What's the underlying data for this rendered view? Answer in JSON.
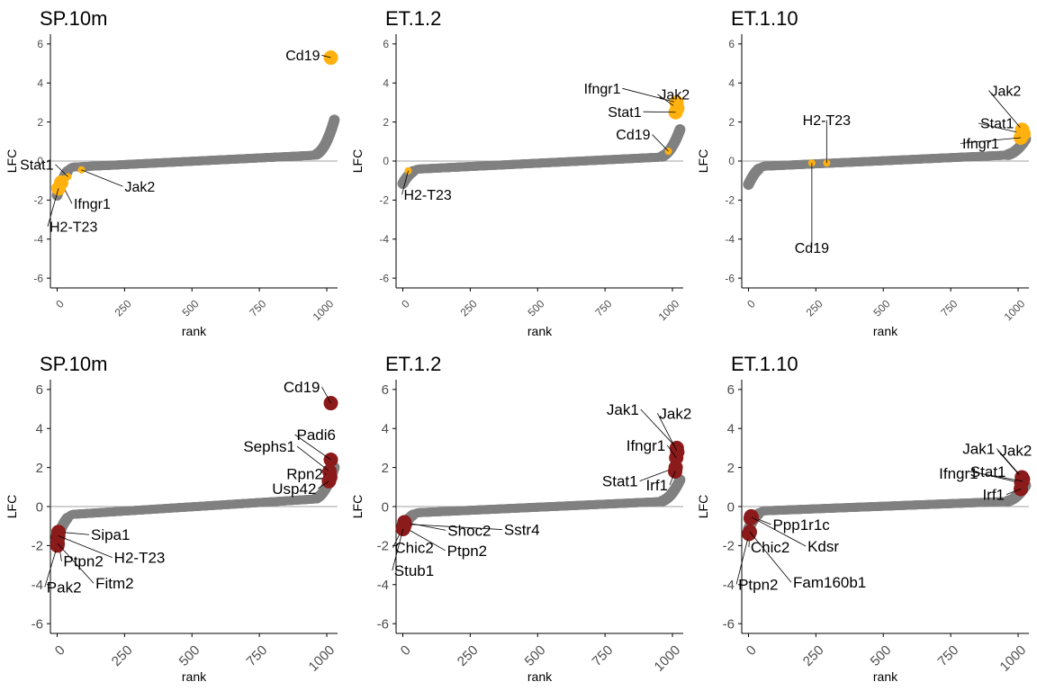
{
  "colors": {
    "background_points": "#808080",
    "highlight_top": "#FFB20F",
    "highlight_bottom": "#8B1A1A",
    "axis": "#000000",
    "zero_line": "#808080"
  },
  "chart_data": [
    {
      "type": "scatter",
      "title": "SP.10m",
      "xlabel": "rank",
      "ylabel": "LFC",
      "xlim": [
        -25,
        1040
      ],
      "ylim": [
        -6.5,
        6.5
      ],
      "xticks": [
        "0",
        "250",
        "500",
        "750",
        "1000"
      ],
      "yticks": [
        "-6",
        "-4",
        "-2",
        "0",
        "2",
        "4",
        "6"
      ],
      "zero_line": true,
      "highlight_color": "#FFB20F",
      "highlights": [
        {
          "label": "Cd19",
          "x": 1015,
          "y": 5.3
        },
        {
          "label": "Stat1",
          "x": 40,
          "y": -0.8
        },
        {
          "label": "Jak2",
          "x": 90,
          "y": -0.45
        },
        {
          "label": "Ifngr1",
          "x": 15,
          "y": -1.1
        },
        {
          "label": "H2-T23",
          "x": 5,
          "y": -1.4
        }
      ]
    },
    {
      "type": "scatter",
      "title": "ET.1.2",
      "xlabel": "rank",
      "ylabel": "LFC",
      "xlim": [
        -25,
        1040
      ],
      "ylim": [
        -6.5,
        6.5
      ],
      "xticks": [
        "0",
        "250",
        "500",
        "750",
        "1000"
      ],
      "yticks": [
        "-6",
        "-4",
        "-2",
        "0",
        "2",
        "4",
        "6"
      ],
      "zero_line": true,
      "highlight_color": "#FFB20F",
      "highlights": [
        {
          "label": "Ifngr1",
          "x": 1015,
          "y": 3.0
        },
        {
          "label": "Jak2",
          "x": 1018,
          "y": 2.7
        },
        {
          "label": "Stat1",
          "x": 1012,
          "y": 2.5
        },
        {
          "label": "Cd19",
          "x": 985,
          "y": 0.5
        },
        {
          "label": "H2-T23",
          "x": 20,
          "y": -0.5
        }
      ]
    },
    {
      "type": "scatter",
      "title": "ET.1.10",
      "xlabel": "rank",
      "ylabel": "LFC",
      "xlim": [
        -25,
        1040
      ],
      "ylim": [
        -6.5,
        6.5
      ],
      "xticks": [
        "0",
        "250",
        "500",
        "750",
        "1000"
      ],
      "yticks": [
        "-6",
        "-4",
        "-2",
        "0",
        "2",
        "4",
        "6"
      ],
      "zero_line": true,
      "highlight_color": "#FFB20F",
      "highlights": [
        {
          "label": "Jak2",
          "x": 1015,
          "y": 1.6
        },
        {
          "label": "Stat1",
          "x": 1020,
          "y": 1.4
        },
        {
          "label": "Ifngr1",
          "x": 1010,
          "y": 1.2
        },
        {
          "label": "H2-T23",
          "x": 290,
          "y": -0.1
        },
        {
          "label": "Cd19",
          "x": 235,
          "y": -0.1
        }
      ]
    },
    {
      "type": "scatter",
      "title": "SP.10m",
      "xlabel": "rank",
      "ylabel": "LFC",
      "xlim": [
        -25,
        1040
      ],
      "ylim": [
        -6.5,
        6.5
      ],
      "xticks": [
        "0",
        "250",
        "500",
        "750",
        "1000"
      ],
      "yticks": [
        "-6",
        "-4",
        "-2",
        "0",
        "2",
        "4",
        "6"
      ],
      "zero_line": true,
      "highlight_color": "#8B1A1A",
      "highlights": [
        {
          "label": "Cd19",
          "x": 1015,
          "y": 5.3
        },
        {
          "label": "Sephs1",
          "x": 1010,
          "y": 1.8
        },
        {
          "label": "Padi6",
          "x": 1015,
          "y": 2.4
        },
        {
          "label": "Rpn2",
          "x": 1013,
          "y": 1.5
        },
        {
          "label": "Usp42",
          "x": 1008,
          "y": 1.3
        },
        {
          "label": "Sipa1",
          "x": 5,
          "y": -1.3
        },
        {
          "label": "Ptpn2",
          "x": 3,
          "y": -1.6
        },
        {
          "label": "H2-T23",
          "x": 4,
          "y": -1.5
        },
        {
          "label": "Pak2",
          "x": 1,
          "y": -2.0
        },
        {
          "label": "Fitm2",
          "x": 2,
          "y": -1.9
        }
      ]
    },
    {
      "type": "scatter",
      "title": "ET.1.2",
      "xlabel": "rank",
      "ylabel": "LFC",
      "xlim": [
        -25,
        1040
      ],
      "ylim": [
        -6.5,
        6.5
      ],
      "xticks": [
        "0",
        "250",
        "500",
        "750",
        "1000"
      ],
      "yticks": [
        "-6",
        "-4",
        "-2",
        "0",
        "2",
        "4",
        "6"
      ],
      "zero_line": true,
      "highlight_color": "#8B1A1A",
      "highlights": [
        {
          "label": "Jak1",
          "x": 1016,
          "y": 3.0
        },
        {
          "label": "Jak2",
          "x": 1018,
          "y": 2.8
        },
        {
          "label": "Ifngr1",
          "x": 1014,
          "y": 2.5
        },
        {
          "label": "Stat1",
          "x": 1012,
          "y": 2.0
        },
        {
          "label": "Irf1",
          "x": 1010,
          "y": 1.8
        },
        {
          "label": "Shoc2",
          "x": 6,
          "y": -0.8
        },
        {
          "label": "Sstr4",
          "x": 8,
          "y": -0.9
        },
        {
          "label": "Chic2",
          "x": 3,
          "y": -1.0
        },
        {
          "label": "Ptpn2",
          "x": 4,
          "y": -1.05
        },
        {
          "label": "Stub1",
          "x": 1,
          "y": -1.15
        }
      ]
    },
    {
      "type": "scatter",
      "title": "ET.1.10",
      "xlabel": "rank",
      "ylabel": "LFC",
      "xlim": [
        -25,
        1040
      ],
      "ylim": [
        -6.5,
        6.5
      ],
      "xticks": [
        "0",
        "250",
        "500",
        "750",
        "1000"
      ],
      "yticks": [
        "-6",
        "-4",
        "-2",
        "0",
        "2",
        "4",
        "6"
      ],
      "zero_line": true,
      "highlight_color": "#8B1A1A",
      "highlights": [
        {
          "label": "Jak1",
          "x": 1014,
          "y": 1.5
        },
        {
          "label": "Jak2",
          "x": 1018,
          "y": 1.4
        },
        {
          "label": "Ifngr1",
          "x": 1012,
          "y": 1.2
        },
        {
          "label": "Stat1",
          "x": 1016,
          "y": 1.3
        },
        {
          "label": "Irf1",
          "x": 1010,
          "y": 0.9
        },
        {
          "label": "Ppp1r1c",
          "x": 10,
          "y": -0.5
        },
        {
          "label": "Chic2",
          "x": 8,
          "y": -0.6
        },
        {
          "label": "Kdsr",
          "x": 12,
          "y": -0.55
        },
        {
          "label": "Ptpn2",
          "x": 2,
          "y": -1.4
        },
        {
          "label": "Fam160b1",
          "x": 5,
          "y": -1.3
        }
      ]
    }
  ]
}
